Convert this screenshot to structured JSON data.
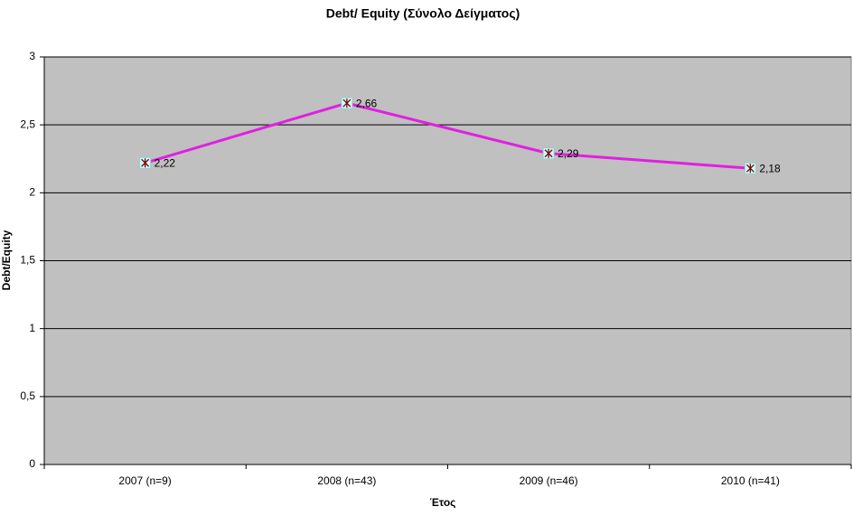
{
  "chart_data": {
    "type": "line",
    "title": "Debt/ Equity (Σύνολο Δείγματος)",
    "x_label": "Έτος",
    "y_label": "Debt/Equity",
    "categories": [
      "2007 (n=9)",
      "2008 (n=43)",
      "2009 (n=46)",
      "2010 (n=41)"
    ],
    "series": [
      {
        "name": "Debt/Equity",
        "color": "#e020e0",
        "values": [
          2.22,
          2.66,
          2.29,
          2.18
        ],
        "value_labels": [
          "2,22",
          "2,66",
          "2,29",
          "2,18"
        ]
      }
    ],
    "ylim": [
      0,
      3
    ],
    "yticks": [
      0,
      {
        "value": 0.5,
        "label": "0,5"
      },
      1,
      {
        "value": 1.5,
        "label": "1,5"
      },
      2,
      {
        "value": 2.5,
        "label": "2,5"
      },
      3
    ],
    "grid": true
  }
}
